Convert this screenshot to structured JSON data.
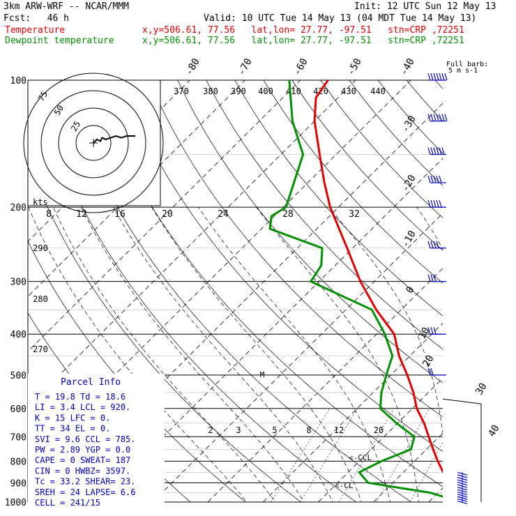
{
  "header": {
    "model": "3km ARW-WRF -- NCAR/MMM",
    "init": "Init: 12 UTC Sun 12 May 13",
    "fcst": "Fcst:   46 h",
    "valid": "Valid: 10 UTC Tue 14 May 13 (04 MDT Tue 14 May 13)",
    "temp_label": "Temperature",
    "dew_label": "Dewpoint temperature",
    "temp_loc": "x,y=506.61, 77.56   lat,lon= 27.77, -97.51   stn=CRP ,72251",
    "dew_loc": "x,y=506.61, 77.56   lat,lon= 27.77, -97.51   stn=CRP ,72251"
  },
  "colors": {
    "temperature": "#e00000",
    "dewpoint": "#009000",
    "parcel_text": "#0000c0",
    "barbs": "#0000c0"
  },
  "pressure_labels": [
    "100",
    "200",
    "300",
    "400",
    "500",
    "600",
    "700",
    "800",
    "900",
    "1000"
  ],
  "temp_isotherm_labels": [
    "-80",
    "-70",
    "-60",
    "-50",
    "-40",
    "-30",
    "-20",
    "-10",
    "0",
    "10",
    "20",
    "30",
    "40"
  ],
  "theta_labels": [
    "370",
    "380",
    "390",
    "400",
    "410",
    "420",
    "430",
    "440"
  ],
  "theta_low_labels": [
    "290",
    "280",
    "270"
  ],
  "mixing_labels": [
    "2",
    "3",
    "5",
    "8",
    "12",
    "20"
  ],
  "hodograph": {
    "ring_labels": [
      "75",
      "50",
      "25"
    ],
    "kts_label": "kts",
    "speed_scale": [
      "8",
      "12",
      "16",
      "20",
      "24",
      "28",
      "32"
    ]
  },
  "barb_legend": {
    "line1": "Full barb:",
    "line2": "5 m s-1"
  },
  "markers": {
    "m_label": "M",
    "ccl_label": "<-CCL",
    "lcl_label": "<-CL"
  },
  "parcel_info": {
    "title": "Parcel Info",
    "rows": [
      "T   =    19.8  Td =  18.6",
      "LI  =     3.4  LCL =  920.",
      "K   =      15  LFC =    0.",
      "TT  =      34  EL  =    0.",
      "SVI =     9.6  CCL =  785.",
      "PW  =    2.89  YGP =   0.0",
      "CAPE =      0  SWEAT=  187",
      "CIN  =      0  HWBZ= 3597.",
      "Tc  =    33.2  SHEAR=  23.",
      "SREH =     24  LAPSE=  6.6",
      "CELL = 241/15"
    ]
  },
  "chart_data": {
    "type": "line",
    "title": "",
    "xlabel": "",
    "ylabel": "",
    "y_axis": "pressure (hPa), log scale",
    "ylim": [
      1000,
      100
    ],
    "series": [
      {
        "name": "Temperature",
        "pressure": [
          1000,
          975,
          950,
          925,
          900,
          850,
          800,
          750,
          700,
          650,
          600,
          550,
          500,
          450,
          400,
          350,
          300,
          250,
          200,
          175,
          150,
          125,
          110,
          100
        ],
        "values": [
          24.8,
          25.4,
          24.2,
          22.6,
          20.4,
          17.2,
          14.2,
          11.2,
          8.1,
          4.8,
          0.8,
          -2.7,
          -7.0,
          -12.0,
          -16.8,
          -24.5,
          -32.5,
          -41.0,
          -51.5,
          -57.0,
          -63.0,
          -70.0,
          -74.0,
          -75.0
        ]
      },
      {
        "name": "Dewpoint temperature",
        "pressure": [
          1000,
          975,
          950,
          925,
          900,
          850,
          800,
          750,
          700,
          650,
          600,
          550,
          500,
          450,
          400,
          350,
          300,
          275,
          250,
          225,
          210,
          200,
          150,
          125,
          100
        ],
        "values": [
          23.6,
          22.2,
          18.5,
          12.0,
          5.5,
          2.0,
          4.0,
          7.2,
          5.5,
          -0.2,
          -5.8,
          -8.5,
          -10.8,
          -13.2,
          -18.5,
          -25.3,
          -41.5,
          -42.5,
          -45.5,
          -58.5,
          -60.5,
          -59.5,
          -66.0,
          -74.0,
          -82.0
        ]
      }
    ],
    "wind_barbs_right": [
      {
        "pressure": 100,
        "speed_ms": 35
      },
      {
        "pressure": 125,
        "speed_ms": 35
      },
      {
        "pressure": 150,
        "speed_ms": 30
      },
      {
        "pressure": 175,
        "speed_ms": 25
      },
      {
        "pressure": 200,
        "speed_ms": 25
      },
      {
        "pressure": 250,
        "speed_ms": 20
      },
      {
        "pressure": 300,
        "speed_ms": 15
      },
      {
        "pressure": 400,
        "speed_ms": 15
      },
      {
        "pressure": 500,
        "speed_ms": 10
      }
    ],
    "hodograph_trace_kts": [
      [
        0,
        0
      ],
      [
        2,
        2
      ],
      [
        4,
        1
      ],
      [
        5,
        3
      ],
      [
        7,
        2
      ],
      [
        10,
        3
      ],
      [
        13,
        4
      ],
      [
        16,
        3
      ],
      [
        19,
        4
      ],
      [
        22,
        4
      ],
      [
        24,
        4
      ]
    ]
  }
}
